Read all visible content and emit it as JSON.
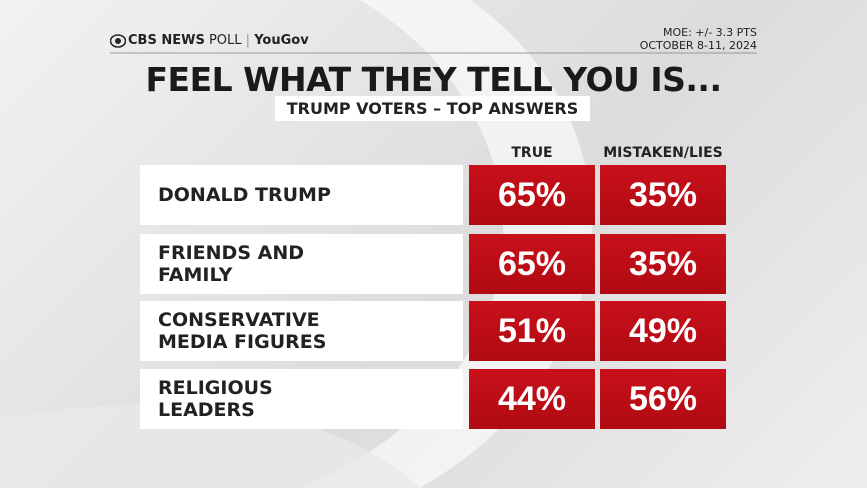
{
  "header": {
    "brand": "CBS NEWS",
    "brand_suffix": "POLL",
    "partner": "YouGov",
    "moe": "MOE: +/- 3.3 PTS",
    "dates": "OCTOBER 8-11, 2024",
    "title": "FEEL WHAT THEY TELL YOU IS...",
    "subtitle": "TRUMP VOTERS – TOP ANSWERS"
  },
  "table": {
    "columns": [
      "TRUE",
      "MISTAKEN/LIES"
    ],
    "rows": [
      {
        "label": "DONALD TRUMP",
        "values": [
          "65%",
          "35%"
        ]
      },
      {
        "label": "FRIENDS AND FAMILY",
        "values": [
          "65%",
          "35%"
        ]
      },
      {
        "label": "CONSERVATIVE MEDIA FIGURES",
        "values": [
          "51%",
          "49%"
        ]
      },
      {
        "label": "RELIGIOUS LEADERS",
        "values": [
          "44%",
          "56%"
        ]
      }
    ]
  }
}
